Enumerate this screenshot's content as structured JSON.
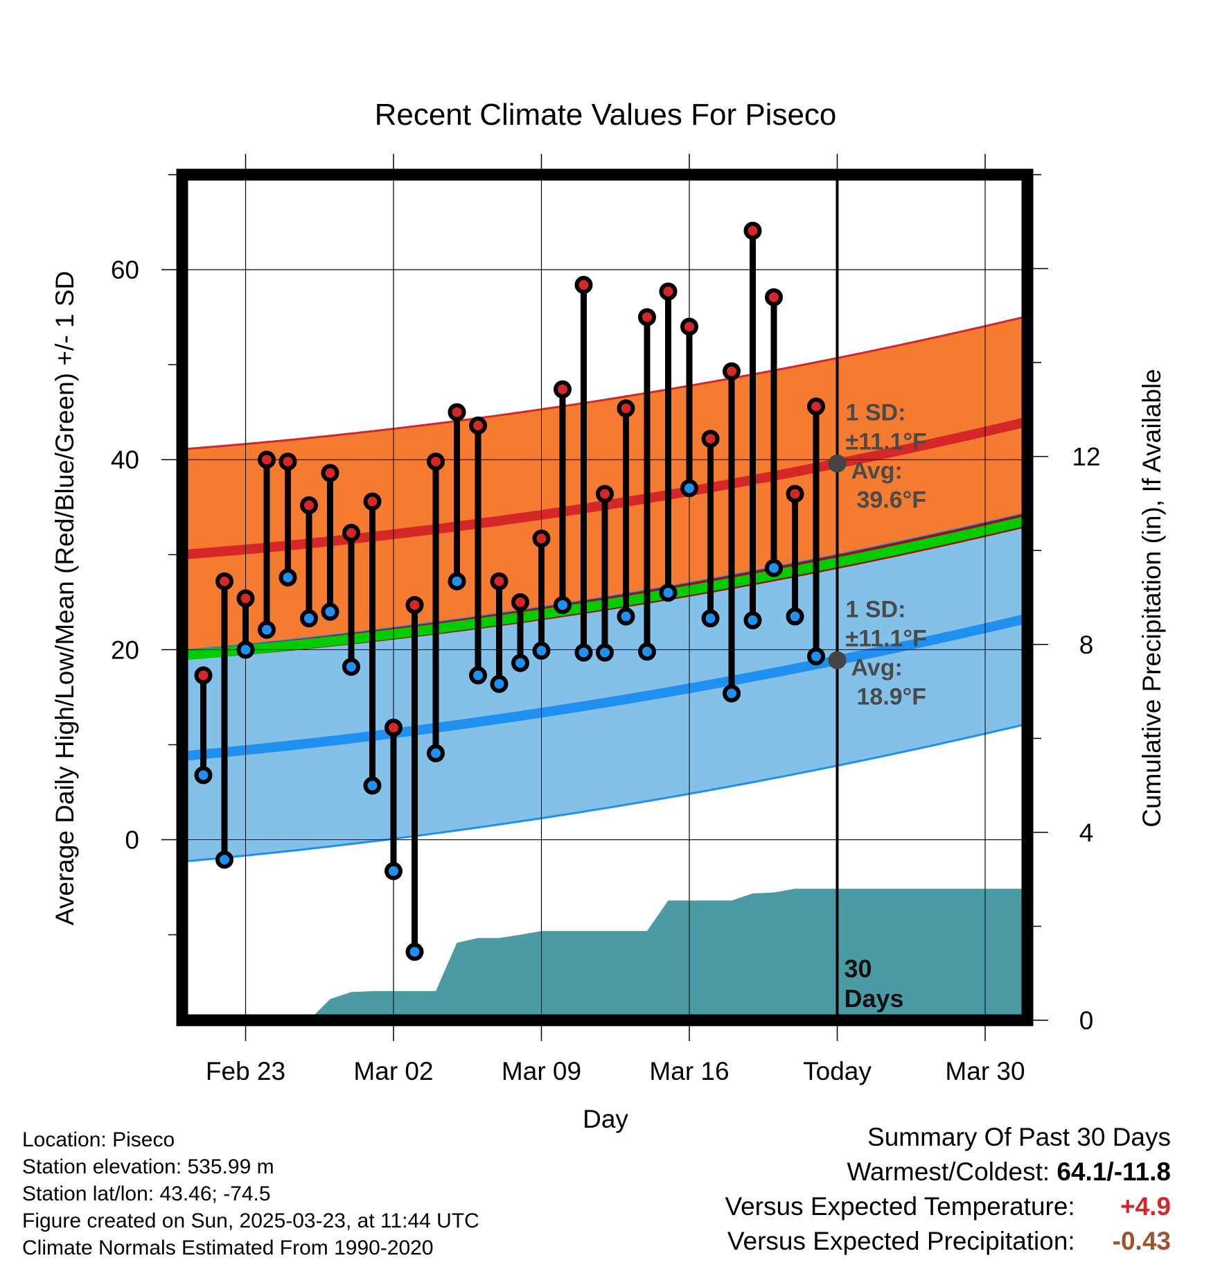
{
  "chart_data": {
    "type": "line",
    "title": "Recent Climate Values For Piseco",
    "xlabel": "Day",
    "ylabel": "Average Daily High/Low/Mean (Red/Blue/Green) +/- 1 SD",
    "y2label": "Cumulative Precipitation (in), If Available",
    "ylim": [
      -19,
      70
    ],
    "y2lim": [
      0,
      18
    ],
    "x_ticks": [
      {
        "day": 3,
        "label": "Feb 23"
      },
      {
        "day": 10,
        "label": "Mar 02"
      },
      {
        "day": 17,
        "label": "Mar 09"
      },
      {
        "day": 24,
        "label": "Mar 16"
      },
      {
        "day": 31,
        "label": "Today"
      },
      {
        "day": 38,
        "label": "Mar 30"
      }
    ],
    "y_ticks": [
      0,
      20,
      40,
      60
    ],
    "y2_ticks": [
      0,
      4,
      8,
      12
    ],
    "today_day": 31,
    "today_marker": "30\nDays",
    "days": [
      1,
      2,
      3,
      4,
      5,
      6,
      7,
      8,
      9,
      10,
      11,
      12,
      13,
      14,
      15,
      16,
      17,
      18,
      19,
      20,
      21,
      22,
      23,
      24,
      25,
      26,
      27,
      28,
      29,
      30
    ],
    "daily_high": [
      17.3,
      27.2,
      25.4,
      40.0,
      39.8,
      35.2,
      38.6,
      32.3,
      35.6,
      11.8,
      24.7,
      39.8,
      45.0,
      43.6,
      27.2,
      25.0,
      31.7,
      47.4,
      58.4,
      36.4,
      45.4,
      55.0,
      57.7,
      54.0,
      42.2,
      49.3,
      64.1,
      57.1,
      36.4,
      45.6
    ],
    "daily_low": [
      6.8,
      -2.1,
      20.0,
      22.1,
      27.6,
      23.3,
      24.0,
      18.2,
      5.7,
      -3.3,
      -11.8,
      9.1,
      27.2,
      17.3,
      16.4,
      18.6,
      19.9,
      24.7,
      19.7,
      19.7,
      23.5,
      19.8,
      26.0,
      37.0,
      23.3,
      15.4,
      23.1,
      28.6,
      23.5,
      19.3
    ],
    "normal_high": {
      "day_start": 0,
      "start": 30.0,
      "today": 39.6,
      "day_end": 40,
      "end": 44.0,
      "sd": 11.1
    },
    "normal_low": {
      "day_start": 0,
      "start": 8.8,
      "today": 18.9,
      "day_end": 40,
      "end": 23.3,
      "sd": 11.1
    },
    "normal_mean": {
      "day_start": 0,
      "start": 19.4,
      "today": 29.2,
      "day_end": 40,
      "end": 33.6
    },
    "precip_cumulative": [
      0,
      0,
      0,
      0,
      0,
      0,
      0,
      0.45,
      0.6,
      0.62,
      0.62,
      0.62,
      0.62,
      1.65,
      1.75,
      1.75,
      1.82,
      1.9,
      1.9,
      1.9,
      1.9,
      1.9,
      1.9,
      2.55,
      2.55,
      2.55,
      2.55,
      2.7,
      2.72,
      2.8,
      2.8
    ],
    "sd_label": "1 SD:",
    "high_sd_text": "±11.1°F",
    "high_avg_label": "Avg:",
    "high_avg_text": "39.6°F",
    "low_sd_text": "±11.1°F",
    "low_avg_label": "Avg:",
    "low_avg_text": "18.9°F",
    "colors": {
      "high_band": "#f47b30",
      "high_line": "#d62728",
      "low_band": "#84c1e8",
      "low_line": "#1f8ff0",
      "mean_line": "#00cc00",
      "precip": "#4a9ba3",
      "high_dot": "#d62728",
      "low_dot": "#1f8ff0",
      "overlap": "#9b1010",
      "avg_dot": "#444444"
    }
  },
  "footer": {
    "location": "Location: Piseco",
    "elevation": "Station elevation: 535.99 m",
    "latlon": "Station lat/lon: 43.46; -74.5",
    "created": "Figure created on Sun, 2025-03-23, at 11:44 UTC",
    "normals": "Climate Normals Estimated From 1990-2020"
  },
  "summary": {
    "heading": "Summary Of Past 30 Days",
    "warm_cold_label": "Warmest/Coldest:",
    "warm_cold_value": "64.1/-11.8",
    "temp_label": "Versus Expected Temperature:",
    "temp_value": "+4.9",
    "precip_label": "Versus Expected Precipitation:",
    "precip_value": "-0.43"
  }
}
